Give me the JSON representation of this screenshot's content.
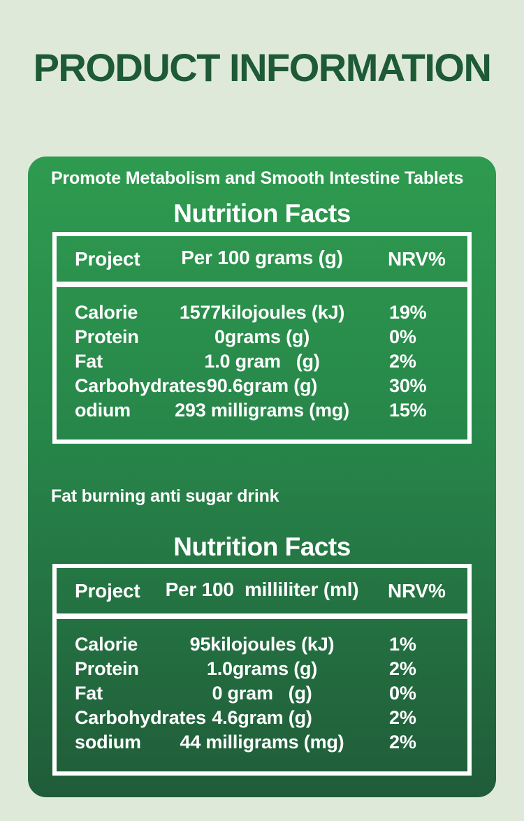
{
  "page": {
    "title": "PRODUCT INFORMATION"
  },
  "colors": {
    "background": "#DFE9DA",
    "title_green": "#1D5A35",
    "panel_gradient_top": "#2E9B4F",
    "panel_gradient_bottom": "#205C39",
    "text": "#FFFFFF"
  },
  "sections": [
    {
      "product_label": "Promote Metabolism and Smooth Intestine Tablets",
      "table_title": "Nutrition Facts",
      "columns": {
        "project": "Project",
        "amount": "Per 100 grams (g)",
        "nrv": "NRV%"
      },
      "rows": [
        {
          "name": "Calorie",
          "amount": "1577kilojoules (kJ)",
          "nrv": "19%"
        },
        {
          "name": "Protein",
          "amount": "0grams (g)",
          "nrv": "0%"
        },
        {
          "name": "Fat",
          "amount": "1.0 gram   (g)",
          "nrv": "2%"
        },
        {
          "name": "Carbohydrates",
          "amount": "90.6gram (g)",
          "nrv": "30%"
        },
        {
          "name": "odium",
          "amount": "293 milligrams (mg)",
          "nrv": "15%"
        }
      ]
    },
    {
      "product_label": "Fat burning anti sugar drink",
      "table_title": "Nutrition Facts",
      "columns": {
        "project": "Project",
        "amount": "Per 100  milliliter (ml)",
        "nrv": "NRV%"
      },
      "rows": [
        {
          "name": "Calorie",
          "amount": "95kilojoules (kJ)",
          "nrv": "1%"
        },
        {
          "name": "Protein",
          "amount": "1.0grams (g)",
          "nrv": "2%"
        },
        {
          "name": "Fat",
          "amount": "0 gram   (g)",
          "nrv": "0%"
        },
        {
          "name": "Carbohydrates",
          "amount": "4.6gram (g)",
          "nrv": "2%"
        },
        {
          "name": "sodium",
          "amount": "44 milligrams (mg)",
          "nrv": "2%"
        }
      ]
    }
  ]
}
